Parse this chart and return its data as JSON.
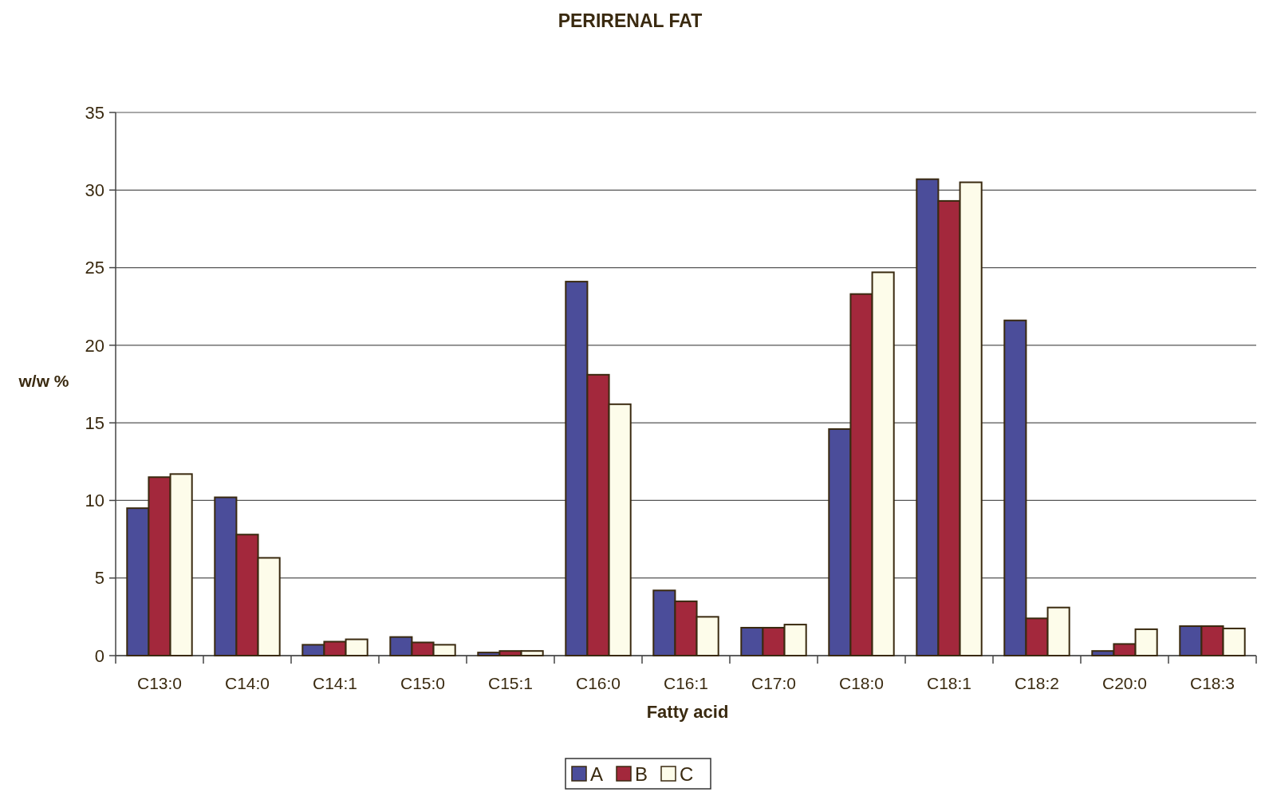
{
  "chart_data": {
    "type": "bar",
    "title": "PERIRENAL FAT",
    "xlabel": "Fatty acid",
    "ylabel": "w/w %",
    "categories": [
      "C13:0",
      "C14:0",
      "C14:1",
      "C15:0",
      "C15:1",
      "C16:0",
      "C16:1",
      "C17:0",
      "C18:0",
      "C18:1",
      "C18:2",
      "C20:0",
      "C18:3"
    ],
    "series": [
      {
        "name": "A",
        "color": "#4b4d9a",
        "values": [
          9.5,
          10.2,
          0.7,
          1.2,
          0.2,
          24.1,
          4.2,
          1.8,
          14.6,
          30.7,
          21.6,
          0.3,
          1.9
        ]
      },
      {
        "name": "B",
        "color": "#a3283c",
        "values": [
          11.5,
          7.8,
          0.9,
          0.85,
          0.3,
          18.1,
          3.5,
          1.8,
          23.3,
          29.3,
          2.4,
          0.75,
          1.9
        ]
      },
      {
        "name": "C",
        "color": "#fdfcea",
        "values": [
          11.7,
          6.3,
          1.05,
          0.7,
          0.3,
          16.2,
          2.5,
          2.0,
          24.7,
          30.5,
          3.1,
          1.7,
          1.75
        ]
      }
    ],
    "ylim": [
      0,
      35
    ],
    "yticks": [
      0,
      5,
      10,
      15,
      20,
      25,
      30,
      35
    ],
    "grid": "y",
    "legend": "bottom"
  }
}
